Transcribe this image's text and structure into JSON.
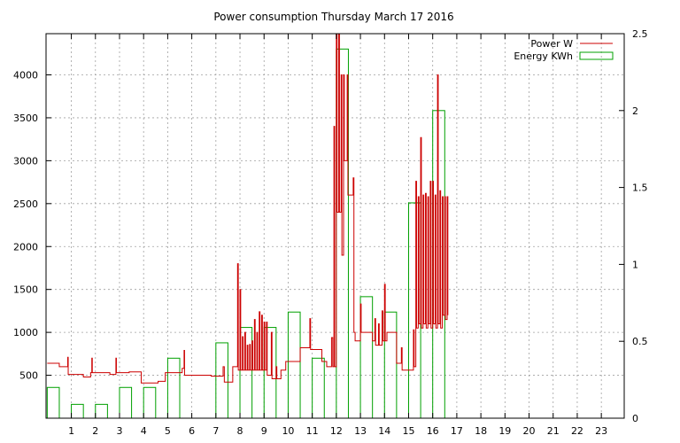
{
  "chart_data": {
    "type": "line",
    "title": "Power consumption Thursday March 17 2016",
    "xlim": [
      -0.05,
      23.95
    ],
    "x_ticks": [
      1,
      2,
      3,
      4,
      5,
      6,
      7,
      8,
      9,
      10,
      11,
      12,
      13,
      14,
      15,
      16,
      17,
      18,
      19,
      20,
      21,
      22,
      23
    ],
    "ylim_left": [
      0,
      4480
    ],
    "y_ticks_left": [
      500,
      1000,
      1500,
      2000,
      2500,
      3000,
      3500,
      4000
    ],
    "ylim_right": [
      0,
      2.5
    ],
    "y_ticks_right": [
      0,
      0.5,
      1,
      1.5,
      2,
      2.5
    ],
    "grid": true,
    "legend_position": "top-right",
    "colors": {
      "power": "#cc0000",
      "energy": "#00a000",
      "grid": "#a0a0a0"
    },
    "series": [
      {
        "name": "Power W",
        "axis": "left",
        "style": "line",
        "points": [
          [
            0.0,
            640
          ],
          [
            0.5,
            640
          ],
          [
            0.5,
            600
          ],
          [
            0.85,
            600
          ],
          [
            0.85,
            710
          ],
          [
            0.87,
            710
          ],
          [
            0.87,
            510
          ],
          [
            1.5,
            510
          ],
          [
            1.5,
            480
          ],
          [
            1.8,
            480
          ],
          [
            1.8,
            530
          ],
          [
            1.85,
            530
          ],
          [
            1.85,
            700
          ],
          [
            1.87,
            700
          ],
          [
            1.87,
            530
          ],
          [
            2.6,
            530
          ],
          [
            2.6,
            510
          ],
          [
            2.85,
            510
          ],
          [
            2.85,
            700
          ],
          [
            2.87,
            700
          ],
          [
            2.87,
            530
          ],
          [
            3.4,
            530
          ],
          [
            3.4,
            540
          ],
          [
            3.9,
            540
          ],
          [
            3.9,
            410
          ],
          [
            4.6,
            410
          ],
          [
            4.6,
            430
          ],
          [
            4.9,
            430
          ],
          [
            4.9,
            530
          ],
          [
            5.6,
            530
          ],
          [
            5.6,
            580
          ],
          [
            5.68,
            580
          ],
          [
            5.68,
            790
          ],
          [
            5.7,
            790
          ],
          [
            5.7,
            500
          ],
          [
            6.8,
            500
          ],
          [
            6.8,
            490
          ],
          [
            7.3,
            490
          ],
          [
            7.3,
            600
          ],
          [
            7.35,
            600
          ],
          [
            7.35,
            420
          ],
          [
            7.7,
            420
          ],
          [
            7.7,
            600
          ],
          [
            7.9,
            600
          ],
          [
            7.9,
            1800
          ],
          [
            7.93,
            1800
          ],
          [
            7.93,
            560
          ],
          [
            8.0,
            560
          ],
          [
            8.0,
            1500
          ],
          [
            8.03,
            1500
          ],
          [
            8.03,
            560
          ],
          [
            8.1,
            560
          ],
          [
            8.1,
            950
          ],
          [
            8.13,
            950
          ],
          [
            8.13,
            560
          ],
          [
            8.2,
            560
          ],
          [
            8.2,
            1000
          ],
          [
            8.23,
            1000
          ],
          [
            8.23,
            560
          ],
          [
            8.3,
            560
          ],
          [
            8.3,
            850
          ],
          [
            8.33,
            850
          ],
          [
            8.33,
            560
          ],
          [
            8.4,
            560
          ],
          [
            8.4,
            860
          ],
          [
            8.43,
            860
          ],
          [
            8.43,
            560
          ],
          [
            8.5,
            560
          ],
          [
            8.5,
            900
          ],
          [
            8.53,
            900
          ],
          [
            8.53,
            560
          ],
          [
            8.6,
            560
          ],
          [
            8.6,
            1150
          ],
          [
            8.63,
            1150
          ],
          [
            8.63,
            560
          ],
          [
            8.7,
            560
          ],
          [
            8.7,
            1000
          ],
          [
            8.73,
            1000
          ],
          [
            8.73,
            560
          ],
          [
            8.8,
            560
          ],
          [
            8.8,
            1240
          ],
          [
            8.83,
            1240
          ],
          [
            8.83,
            560
          ],
          [
            8.9,
            560
          ],
          [
            8.9,
            1200
          ],
          [
            8.93,
            1200
          ],
          [
            8.93,
            560
          ],
          [
            9.0,
            560
          ],
          [
            9.0,
            1120
          ],
          [
            9.03,
            1120
          ],
          [
            9.03,
            560
          ],
          [
            9.1,
            560
          ],
          [
            9.1,
            1120
          ],
          [
            9.13,
            1120
          ],
          [
            9.13,
            500
          ],
          [
            9.3,
            500
          ],
          [
            9.3,
            1000
          ],
          [
            9.33,
            1000
          ],
          [
            9.33,
            460
          ],
          [
            9.5,
            460
          ],
          [
            9.5,
            600
          ],
          [
            9.53,
            600
          ],
          [
            9.53,
            460
          ],
          [
            9.7,
            460
          ],
          [
            9.7,
            560
          ],
          [
            9.9,
            560
          ],
          [
            9.9,
            660
          ],
          [
            10.5,
            660
          ],
          [
            10.5,
            820
          ],
          [
            10.9,
            820
          ],
          [
            10.9,
            1160
          ],
          [
            10.93,
            1160
          ],
          [
            10.93,
            800
          ],
          [
            11.4,
            800
          ],
          [
            11.4,
            660
          ],
          [
            11.6,
            660
          ],
          [
            11.6,
            600
          ],
          [
            11.8,
            600
          ],
          [
            11.8,
            940
          ],
          [
            11.85,
            940
          ],
          [
            11.85,
            600
          ],
          [
            11.9,
            600
          ],
          [
            11.9,
            3400
          ],
          [
            11.93,
            3400
          ],
          [
            11.93,
            600
          ],
          [
            12.0,
            600
          ],
          [
            12.0,
            4480
          ],
          [
            12.03,
            4480
          ],
          [
            12.03,
            2400
          ],
          [
            12.1,
            2400
          ],
          [
            12.1,
            4480
          ],
          [
            12.13,
            4480
          ],
          [
            12.13,
            2400
          ],
          [
            12.2,
            2400
          ],
          [
            12.2,
            4000
          ],
          [
            12.23,
            4000
          ],
          [
            12.23,
            1900
          ],
          [
            12.3,
            1900
          ],
          [
            12.3,
            4000
          ],
          [
            12.33,
            4000
          ],
          [
            12.33,
            3000
          ],
          [
            12.45,
            3000
          ],
          [
            12.45,
            4000
          ],
          [
            12.48,
            4000
          ],
          [
            12.48,
            2600
          ],
          [
            12.7,
            2600
          ],
          [
            12.7,
            2800
          ],
          [
            12.73,
            2800
          ],
          [
            12.73,
            1000
          ],
          [
            12.78,
            1000
          ],
          [
            12.78,
            900
          ],
          [
            13.0,
            900
          ],
          [
            13.0,
            1330
          ],
          [
            13.03,
            1330
          ],
          [
            13.03,
            1000
          ],
          [
            13.5,
            1000
          ],
          [
            13.5,
            900
          ],
          [
            13.6,
            900
          ],
          [
            13.6,
            1160
          ],
          [
            13.63,
            1160
          ],
          [
            13.63,
            850
          ],
          [
            13.75,
            850
          ],
          [
            13.75,
            1100
          ],
          [
            13.78,
            1100
          ],
          [
            13.78,
            850
          ],
          [
            13.9,
            850
          ],
          [
            13.9,
            1250
          ],
          [
            13.93,
            1250
          ],
          [
            13.93,
            900
          ],
          [
            14.0,
            900
          ],
          [
            14.0,
            1560
          ],
          [
            14.03,
            1560
          ],
          [
            14.03,
            900
          ],
          [
            14.1,
            900
          ],
          [
            14.1,
            1000
          ],
          [
            14.5,
            1000
          ],
          [
            14.5,
            640
          ],
          [
            14.7,
            640
          ],
          [
            14.7,
            820
          ],
          [
            14.73,
            820
          ],
          [
            14.73,
            560
          ],
          [
            15.2,
            560
          ],
          [
            15.2,
            1030
          ],
          [
            15.23,
            1030
          ],
          [
            15.23,
            600
          ],
          [
            15.3,
            600
          ],
          [
            15.3,
            2760
          ],
          [
            15.33,
            2760
          ],
          [
            15.33,
            1050
          ],
          [
            15.4,
            1050
          ],
          [
            15.4,
            2580
          ],
          [
            15.43,
            2580
          ],
          [
            15.43,
            1100
          ],
          [
            15.5,
            1100
          ],
          [
            15.5,
            3270
          ],
          [
            15.53,
            3270
          ],
          [
            15.53,
            1050
          ],
          [
            15.6,
            1050
          ],
          [
            15.6,
            2600
          ],
          [
            15.63,
            2600
          ],
          [
            15.63,
            1100
          ],
          [
            15.7,
            1100
          ],
          [
            15.7,
            2620
          ],
          [
            15.73,
            2620
          ],
          [
            15.73,
            1050
          ],
          [
            15.8,
            1050
          ],
          [
            15.8,
            2580
          ],
          [
            15.83,
            2580
          ],
          [
            15.83,
            1100
          ],
          [
            15.9,
            1100
          ],
          [
            15.9,
            2760
          ],
          [
            15.93,
            2760
          ],
          [
            15.93,
            1050
          ],
          [
            16.0,
            1050
          ],
          [
            16.0,
            2760
          ],
          [
            16.03,
            2760
          ],
          [
            16.03,
            1100
          ],
          [
            16.1,
            1100
          ],
          [
            16.1,
            2600
          ],
          [
            16.13,
            2600
          ],
          [
            16.13,
            1050
          ],
          [
            16.2,
            1050
          ],
          [
            16.2,
            4000
          ],
          [
            16.23,
            4000
          ],
          [
            16.23,
            1100
          ],
          [
            16.3,
            1100
          ],
          [
            16.3,
            2650
          ],
          [
            16.33,
            2650
          ],
          [
            16.33,
            1050
          ],
          [
            16.4,
            1050
          ],
          [
            16.4,
            2580
          ],
          [
            16.43,
            2580
          ],
          [
            16.43,
            1200
          ],
          [
            16.5,
            1200
          ],
          [
            16.5,
            2580
          ],
          [
            16.53,
            2580
          ],
          [
            16.53,
            1150
          ],
          [
            16.6,
            1150
          ],
          [
            16.6,
            2580
          ],
          [
            16.63,
            2580
          ],
          [
            16.63,
            1200
          ]
        ]
      },
      {
        "name": "Energy KWh",
        "axis": "right",
        "style": "impulse-box",
        "boxes": [
          [
            0,
            0.2
          ],
          [
            1,
            0.09
          ],
          [
            2,
            0.09
          ],
          [
            3,
            0.2
          ],
          [
            4,
            0.2
          ],
          [
            5,
            0.39
          ],
          [
            7,
            0.49
          ],
          [
            8,
            0.59
          ],
          [
            9,
            0.59
          ],
          [
            10,
            0.69
          ],
          [
            11,
            0.39
          ],
          [
            12,
            2.4
          ],
          [
            13,
            0.79
          ],
          [
            14,
            0.69
          ],
          [
            15,
            1.4
          ],
          [
            16,
            2.0
          ]
        ]
      }
    ]
  }
}
